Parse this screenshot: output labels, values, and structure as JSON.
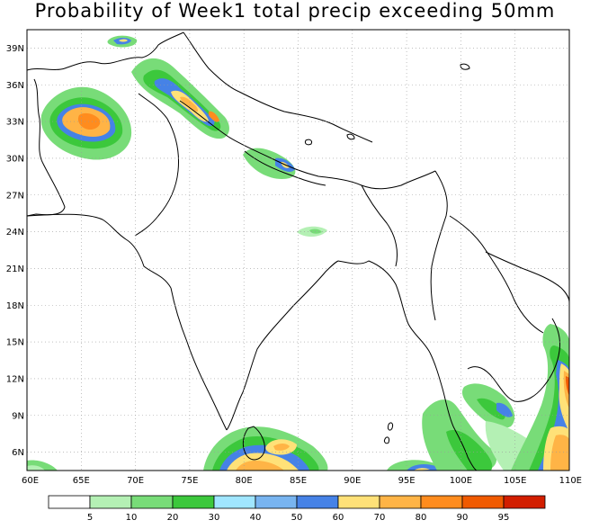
{
  "title": "Probability of Week1 total precip exceeding 50mm",
  "map": {
    "lon_range": [
      60,
      110
    ],
    "lat_range": [
      4.5,
      40.5
    ],
    "lat_ticks": [
      "6N",
      "9N",
      "12N",
      "15N",
      "18N",
      "21N",
      "24N",
      "27N",
      "30N",
      "33N",
      "36N",
      "39N"
    ],
    "lon_ticks": [
      "60E",
      "65E",
      "70E",
      "75E",
      "80E",
      "85E",
      "90E",
      "95E",
      "100E",
      "105E",
      "110E"
    ]
  },
  "legend": {
    "labels": [
      "5",
      "10",
      "20",
      "30",
      "40",
      "50",
      "60",
      "70",
      "80",
      "90",
      "95"
    ],
    "colors": [
      "#ffffff",
      "#b4f0b4",
      "#78dc78",
      "#3cc83c",
      "#a0e6ff",
      "#78b4f0",
      "#4682e6",
      "#ffe178",
      "#ffb446",
      "#ff8c1e",
      "#f05a00",
      "#d21e00"
    ]
  }
}
